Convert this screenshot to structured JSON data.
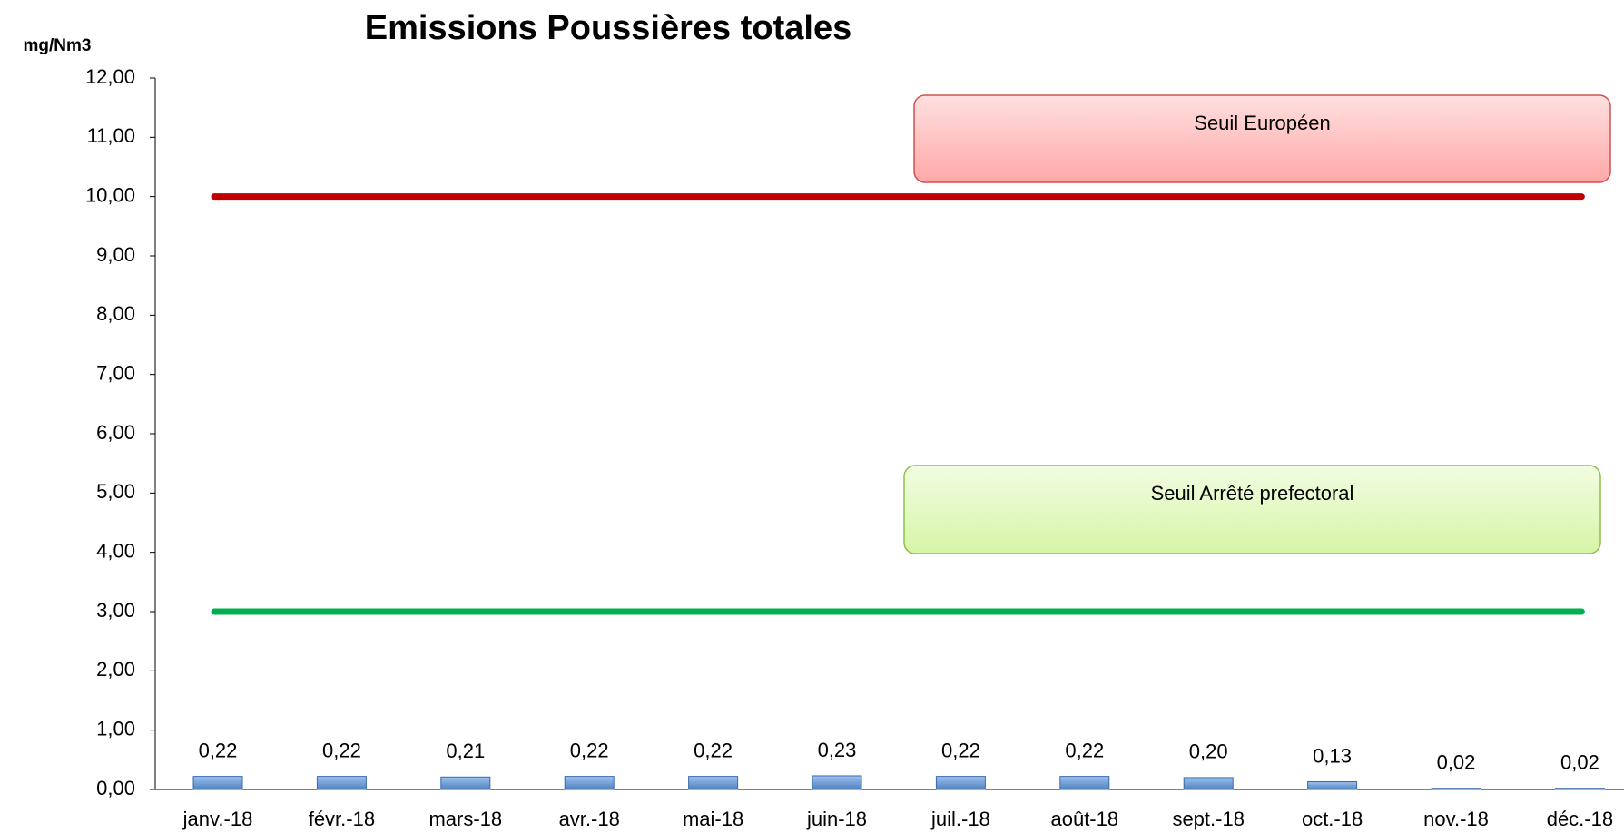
{
  "chart_data": {
    "type": "bar",
    "title": "Emissions Poussières totales",
    "y_label": "mg/Nm3",
    "categories": [
      "janv.-18",
      "févr.-18",
      "mars-18",
      "avr.-18",
      "mai-18",
      "juin-18",
      "juil.-18",
      "août-18",
      "sept.-18",
      "oct.-18",
      "nov.-18",
      "déc.-18"
    ],
    "values": [
      0.22,
      0.22,
      0.21,
      0.22,
      0.22,
      0.23,
      0.22,
      0.22,
      0.2,
      0.13,
      0.02,
      0.02
    ],
    "value_labels": [
      "0,22",
      "0,22",
      "0,21",
      "0,22",
      "0,22",
      "0,23",
      "0,22",
      "0,22",
      "0,20",
      "0,13",
      "0,02",
      "0,02"
    ],
    "color": "#6a9bd8",
    "ylim": [
      0,
      12
    ],
    "yticks": [
      {
        "value": 0,
        "label": "0,00"
      },
      {
        "value": 1,
        "label": "1,00"
      },
      {
        "value": 2,
        "label": "2,00"
      },
      {
        "value": 3,
        "label": "3,00"
      },
      {
        "value": 4,
        "label": "4,00"
      },
      {
        "value": 5,
        "label": "5,00"
      },
      {
        "value": 6,
        "label": "6,00"
      },
      {
        "value": 7,
        "label": "7,00"
      },
      {
        "value": 8,
        "label": "8,00"
      },
      {
        "value": 9,
        "label": "9,00"
      },
      {
        "value": 10,
        "label": "10,00"
      },
      {
        "value": 11,
        "label": "11,00"
      },
      {
        "value": 12,
        "label": "12,00"
      }
    ],
    "thresholds": [
      {
        "name": "Seuil Européen",
        "value": 10,
        "color": "#c00000"
      },
      {
        "name": "Seuil Arrêté prefectoral",
        "value": 3,
        "color": "#00b050"
      }
    ]
  }
}
